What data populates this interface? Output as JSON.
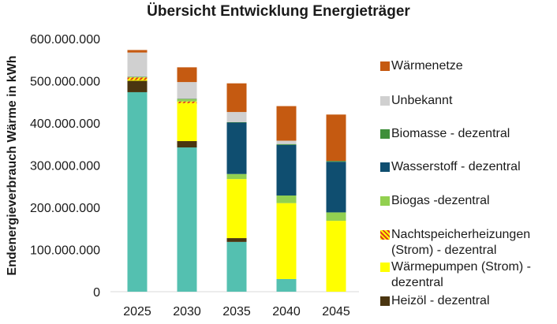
{
  "chart_data": {
    "type": "bar",
    "stacked": true,
    "title": "Übersicht Entwicklung Energieträger",
    "ylabel": "Endenergieverbrauch Wärme in kWh",
    "xlabel": "",
    "categories": [
      "2025",
      "2030",
      "2035",
      "2040",
      "2045"
    ],
    "ylim": [
      0,
      600000000
    ],
    "yticks": [
      0,
      100000000,
      200000000,
      300000000,
      400000000,
      500000000,
      600000000
    ],
    "ytick_labels": [
      "0",
      "100.000.000",
      "200.000.000",
      "300.000.000",
      "400.000.000",
      "500.000.000",
      "600.000.000"
    ],
    "legend_position": "right",
    "series": [
      {
        "key": "rest",
        "values": [
          473000000,
          342000000,
          118000000,
          30000000,
          0
        ],
        "color": "#54c0b0"
      },
      {
        "key": "heizoel",
        "name": "Heizöl - dezentral",
        "values": [
          27000000,
          15000000,
          9000000,
          0,
          0
        ],
        "color": "#4a3510"
      },
      {
        "key": "waermepumpen",
        "name": "Wärmepumpen (Strom) - dezentral",
        "values": [
          2000000,
          90000000,
          140000000,
          180000000,
          168000000
        ],
        "color": "#ffff00"
      },
      {
        "key": "nachtspeicher",
        "name": "Nachtspeicherheizungen (Strom) - dezentral",
        "values": [
          6000000,
          4000000,
          0,
          0,
          0
        ],
        "color": "#e03a1a",
        "pattern": "hatch"
      },
      {
        "key": "biogas",
        "name": "Biogas -dezentral",
        "values": [
          1000000,
          5000000,
          12000000,
          18000000,
          20000000
        ],
        "color": "#92d050"
      },
      {
        "key": "wasserstoff",
        "name": "Wasserstoff - dezentral",
        "values": [
          0,
          0,
          122000000,
          120000000,
          120000000
        ],
        "color": "#0f4e70"
      },
      {
        "key": "biomasse",
        "name": "Biomasse - dezentral",
        "values": [
          1000000,
          1000000,
          1000000,
          2000000,
          2000000
        ],
        "color": "#3f8f3a"
      },
      {
        "key": "unbekannt",
        "name": "Unbekannt",
        "values": [
          57000000,
          40000000,
          24000000,
          8000000,
          0
        ],
        "color": "#d0d0d0"
      },
      {
        "key": "waermenetze",
        "name": "Wärmenetze",
        "values": [
          6000000,
          35000000,
          68000000,
          82000000,
          110000000
        ],
        "color": "#c55a11"
      }
    ]
  },
  "legend_order": [
    "waermenetze",
    "unbekannt",
    "biomasse",
    "wasserstoff",
    "biogas",
    "nachtspeicher",
    "waermepumpen",
    "heizoel"
  ]
}
